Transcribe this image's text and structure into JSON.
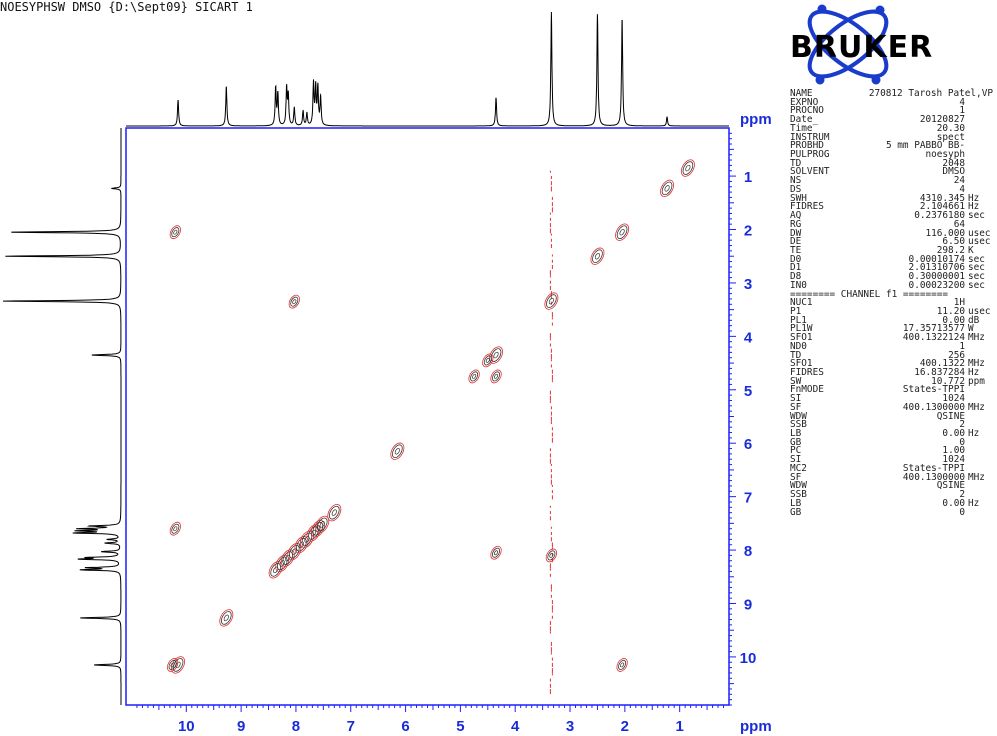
{
  "title": "NOESYPHSW DMSO {D:\\Sept09} SICART 1",
  "logo_text": "BRUKER",
  "chart_data": {
    "type": "contour",
    "f2_axis": {
      "label": "ppm",
      "range": [
        11.1,
        0.1
      ],
      "ticks": [
        10,
        9,
        8,
        7,
        6,
        5,
        4,
        3,
        2,
        1
      ]
    },
    "f1_axis": {
      "label": "ppm",
      "range": [
        0.1,
        10.9
      ],
      "ticks": [
        1,
        2,
        3,
        4,
        5,
        6,
        7,
        8,
        9,
        10
      ]
    },
    "projection_peaks": [
      {
        "ppm": 10.15,
        "height": 0.23
      },
      {
        "ppm": 9.27,
        "height": 0.35
      },
      {
        "ppm": 8.37,
        "height": 0.33
      },
      {
        "ppm": 8.33,
        "height": 0.28
      },
      {
        "ppm": 8.17,
        "height": 0.33
      },
      {
        "ppm": 8.14,
        "height": 0.26
      },
      {
        "ppm": 8.03,
        "height": 0.16
      },
      {
        "ppm": 7.87,
        "height": 0.13
      },
      {
        "ppm": 7.8,
        "height": 0.11
      },
      {
        "ppm": 7.68,
        "height": 0.37
      },
      {
        "ppm": 7.64,
        "height": 0.33
      },
      {
        "ppm": 7.6,
        "height": 0.33
      },
      {
        "ppm": 7.55,
        "height": 0.25
      },
      {
        "ppm": 4.35,
        "height": 0.25
      },
      {
        "ppm": 3.34,
        "height": 1.0
      },
      {
        "ppm": 2.5,
        "height": 0.98
      },
      {
        "ppm": 2.05,
        "height": 0.95
      },
      {
        "ppm": 1.23,
        "height": 0.08
      }
    ],
    "diagonal_peaks": [
      {
        "x": 10.15,
        "y": 10.15
      },
      {
        "x": 9.27,
        "y": 9.27
      },
      {
        "x": 8.37,
        "y": 8.37
      },
      {
        "x": 8.25,
        "y": 8.25
      },
      {
        "x": 8.15,
        "y": 8.15
      },
      {
        "x": 8.03,
        "y": 8.03
      },
      {
        "x": 7.9,
        "y": 7.9
      },
      {
        "x": 7.8,
        "y": 7.8
      },
      {
        "x": 7.68,
        "y": 7.68
      },
      {
        "x": 7.6,
        "y": 7.6
      },
      {
        "x": 7.52,
        "y": 7.52
      },
      {
        "x": 7.3,
        "y": 7.3
      },
      {
        "x": 6.15,
        "y": 6.15
      },
      {
        "x": 4.35,
        "y": 4.35
      },
      {
        "x": 3.34,
        "y": 3.34
      },
      {
        "x": 2.5,
        "y": 2.5
      },
      {
        "x": 2.05,
        "y": 2.05
      },
      {
        "x": 1.23,
        "y": 1.23
      },
      {
        "x": 0.85,
        "y": 0.85
      }
    ],
    "cross_peaks": [
      {
        "x": 4.35,
        "y": 4.75
      },
      {
        "x": 4.75,
        "y": 4.75
      },
      {
        "x": 4.5,
        "y": 4.45
      },
      {
        "x": 10.2,
        "y": 2.05
      },
      {
        "x": 8.03,
        "y": 3.35
      },
      {
        "x": 4.35,
        "y": 8.05
      },
      {
        "x": 10.2,
        "y": 7.6
      },
      {
        "x": 2.05,
        "y": 10.15
      },
      {
        "x": 3.34,
        "y": 8.1
      },
      {
        "x": 10.25,
        "y": 10.15
      }
    ],
    "t1_noise_ppm": 3.34
  },
  "parameters": [
    {
      "name": "NAME",
      "value": "270812 Tarosh Patel,VP",
      "unit": ""
    },
    {
      "name": "EXPNO",
      "value": "4",
      "unit": ""
    },
    {
      "name": "PROCNO",
      "value": "1",
      "unit": ""
    },
    {
      "name": "Date_",
      "value": "20120827",
      "unit": ""
    },
    {
      "name": "Time",
      "value": "20.30",
      "unit": ""
    },
    {
      "name": "INSTRUM",
      "value": "spect",
      "unit": ""
    },
    {
      "name": "PROBHD",
      "value": "5 mm PABBO BB-",
      "unit": ""
    },
    {
      "name": "PULPROG",
      "value": "noesyph",
      "unit": ""
    },
    {
      "name": "TD",
      "value": "2048",
      "unit": ""
    },
    {
      "name": "SOLVENT",
      "value": "DMSO",
      "unit": ""
    },
    {
      "name": "NS",
      "value": "24",
      "unit": ""
    },
    {
      "name": "DS",
      "value": "4",
      "unit": ""
    },
    {
      "name": "SWH",
      "value": "4310.345",
      "unit": "Hz"
    },
    {
      "name": "FIDRES",
      "value": "2.104661",
      "unit": "Hz"
    },
    {
      "name": "AQ",
      "value": "0.2376180",
      "unit": "sec"
    },
    {
      "name": "RG",
      "value": "64",
      "unit": ""
    },
    {
      "name": "DW",
      "value": "116.000",
      "unit": "usec"
    },
    {
      "name": "DE",
      "value": "6.50",
      "unit": "usec"
    },
    {
      "name": "TE",
      "value": "298.2",
      "unit": "K"
    },
    {
      "name": "D0",
      "value": "0.00010174",
      "unit": "sec"
    },
    {
      "name": "D1",
      "value": "2.01310706",
      "unit": "sec"
    },
    {
      "name": "D8",
      "value": "0.30000001",
      "unit": "sec"
    },
    {
      "name": "IN0",
      "value": "0.00023200",
      "unit": "sec"
    },
    {
      "sep": "======== CHANNEL f1 ========"
    },
    {
      "name": "NUC1",
      "value": "1H",
      "unit": ""
    },
    {
      "name": "P1",
      "value": "11.20",
      "unit": "usec"
    },
    {
      "name": "PL1",
      "value": "0.00",
      "unit": "dB"
    },
    {
      "name": "PL1W",
      "value": "17.35713577",
      "unit": "W"
    },
    {
      "name": "SFO1",
      "value": "400.1322124",
      "unit": "MHz"
    },
    {
      "name": "ND0",
      "value": "1",
      "unit": ""
    },
    {
      "name": "TD",
      "value": "256",
      "unit": ""
    },
    {
      "name": "SFO1",
      "value": "400.1322",
      "unit": "MHz"
    },
    {
      "name": "FIDRES",
      "value": "16.837284",
      "unit": "Hz"
    },
    {
      "name": "SW",
      "value": "10.772",
      "unit": "ppm"
    },
    {
      "name": "FnMODE",
      "value": "States-TPPI",
      "unit": ""
    },
    {
      "name": "SI",
      "value": "1024",
      "unit": ""
    },
    {
      "name": "SF",
      "value": "400.1300000",
      "unit": "MHz"
    },
    {
      "name": "WDW",
      "value": "QSINE",
      "unit": ""
    },
    {
      "name": "SSB",
      "value": "2",
      "unit": ""
    },
    {
      "name": "LB",
      "value": "0.00",
      "unit": "Hz"
    },
    {
      "name": "GB",
      "value": "0",
      "unit": ""
    },
    {
      "name": "PC",
      "value": "1.00",
      "unit": ""
    },
    {
      "name": "SI",
      "value": "1024",
      "unit": ""
    },
    {
      "name": "MC2",
      "value": "States-TPPI",
      "unit": ""
    },
    {
      "name": "SF",
      "value": "400.1300000",
      "unit": "MHz"
    },
    {
      "name": "WDW",
      "value": "QSINE",
      "unit": ""
    },
    {
      "name": "SSB",
      "value": "2",
      "unit": ""
    },
    {
      "name": "LB",
      "value": "0.00",
      "unit": "Hz"
    },
    {
      "name": "GB",
      "value": "0",
      "unit": ""
    }
  ]
}
